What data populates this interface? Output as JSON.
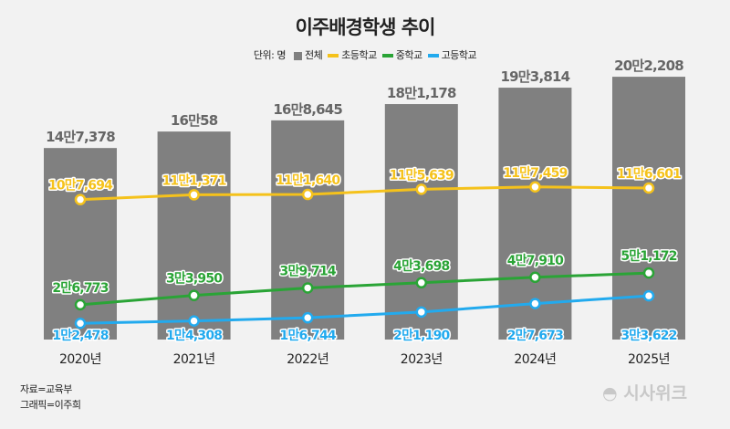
{
  "chart_data": {
    "type": "bar+line",
    "title": "이주배경학생 추이",
    "unit_label": "단위: 명",
    "categories": [
      "2020년",
      "2021년",
      "2022년",
      "2023년",
      "2024년",
      "2025년"
    ],
    "ylim": [
      0,
      210000
    ],
    "grid": false,
    "legend_placement": "top",
    "series": [
      {
        "name": "전체",
        "kind": "bar",
        "color": "#808080",
        "values": [
          147378,
          160058,
          168645,
          181178,
          193814,
          202208
        ],
        "labels": [
          "14만7,378",
          "16만58",
          "16만8,645",
          "18만1,178",
          "19만3,814",
          "20만2,208"
        ]
      },
      {
        "name": "초등학교",
        "kind": "line",
        "color": "#f5c21b",
        "values": [
          107694,
          111371,
          111640,
          115639,
          117459,
          116601
        ],
        "labels": [
          "10만7,694",
          "11만1,371",
          "11만1,640",
          "11만5,639",
          "11만7,459",
          "11만6,601"
        ]
      },
      {
        "name": "중학교",
        "kind": "line",
        "color": "#2aa436",
        "values": [
          26773,
          33950,
          39714,
          43698,
          47910,
          51172
        ],
        "labels": [
          "2만6,773",
          "3만3,950",
          "3만9,714",
          "4만3,698",
          "4만7,910",
          "5만1,172"
        ]
      },
      {
        "name": "고등학교",
        "kind": "line",
        "color": "#22aaee",
        "values": [
          12478,
          14308,
          16744,
          21190,
          27673,
          33622
        ],
        "labels": [
          "1만2,478",
          "1만4,308",
          "1만6,744",
          "2만1,190",
          "2만7,673",
          "3만3,622"
        ]
      }
    ]
  },
  "footer": {
    "source": "자료=교육부",
    "graphic": "그래픽=이주희",
    "logo": "시사위크"
  }
}
